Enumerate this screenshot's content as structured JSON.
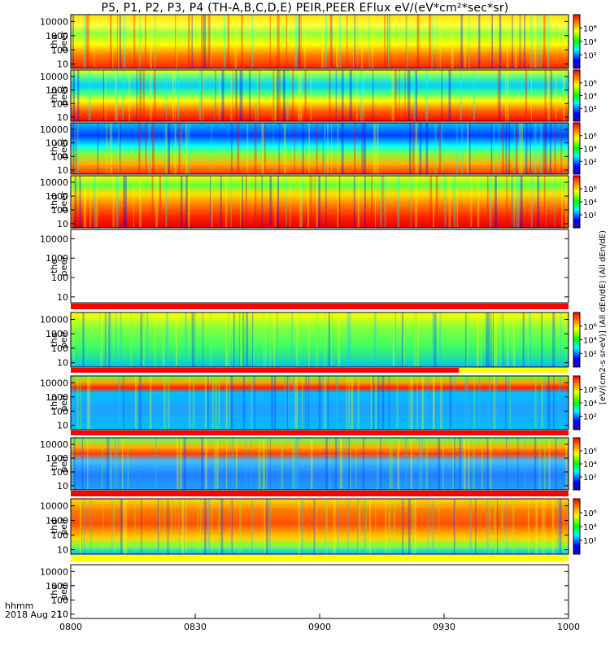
{
  "title": "P5, P1, P2, P3, P4 (TH-A,B,C,D,E) PEIR,PEER EFlux eV/(eV*cm²*sec*sr)",
  "footer": {
    "time_label": "hhmm",
    "date_label": "2018 Aug 21"
  },
  "colorbar_label": "[eV/(cm2-s sr-eV)] (All dEn/dE) (All dEn/dE)",
  "chart_data": [
    {
      "type": "heatmap",
      "title": "P5, P1, P2, P3, P4 (TH-A,B,C,D,E) PEIR,PEER EFlux eV/(eV*cm²*sec*sr)",
      "x_axis": {
        "ticks": [
          "0800",
          "0830",
          "0900",
          "0930",
          "1000"
        ],
        "range": [
          "0800",
          "1000"
        ]
      },
      "y_axis": {
        "scale": "log",
        "ticks": [
          "10",
          "100",
          "1000",
          "10000"
        ],
        "range": [
          5,
          30000
        ]
      },
      "colorbar": {
        "scale": "log",
        "ticks": [
          "10²",
          "10⁴",
          "10⁶"
        ],
        "colors": [
          "#2a00b0",
          "#0000ff",
          "#00ffff",
          "#00ff00",
          "#ffff00",
          "#ff8000",
          "#ff0000"
        ]
      },
      "panels": [
        {
          "label_top": "tha",
          "label_bottom": "peer",
          "has_data": true,
          "flag_bar": "none"
        },
        {
          "label_top": "thb",
          "label_bottom": "peer",
          "has_data": true,
          "flag_bar": "none"
        },
        {
          "label_top": "thc",
          "label_bottom": "peer",
          "has_data": true,
          "flag_bar": "none"
        },
        {
          "label_top": "thd",
          "label_bottom": "peer",
          "has_data": true,
          "flag_bar": "none"
        },
        {
          "label_top": "the",
          "label_bottom": "peer",
          "has_data": false,
          "flag_bar": "red"
        },
        {
          "label_top": "tha",
          "label_bottom": "peir",
          "has_data": true,
          "flag_bar": "red-yellow"
        },
        {
          "label_top": "thb",
          "label_bottom": "peir",
          "has_data": true,
          "flag_bar": "red"
        },
        {
          "label_top": "thc",
          "label_bottom": "peir",
          "has_data": true,
          "flag_bar": "red"
        },
        {
          "label_top": "thd",
          "label_bottom": "peir",
          "has_data": true,
          "flag_bar": "yellow"
        },
        {
          "label_top": "the",
          "label_bottom": "peir",
          "has_data": false,
          "flag_bar": "none"
        }
      ]
    }
  ]
}
